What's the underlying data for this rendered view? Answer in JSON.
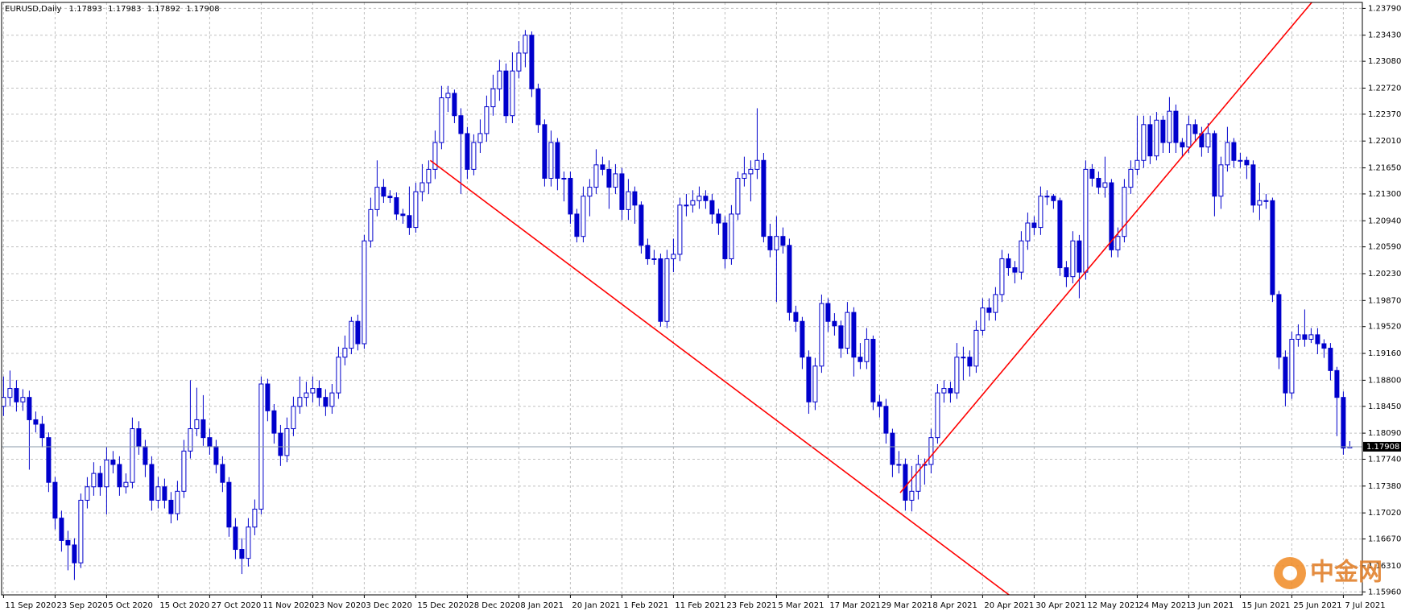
{
  "chart_data": {
    "type": "candlestick",
    "symbol": "EURUSD,Daily",
    "watermark": "中金网",
    "bull_color": "#ffffff",
    "bear_color": "#0000cc",
    "wick_color": "#0000cc",
    "grid": true,
    "price_line_color": "#8899aa",
    "ylim": [
      1.1592,
      1.2387
    ],
    "yticks": [
      {
        "value": 1.2379,
        "label": "1.23790"
      },
      {
        "value": 1.2343,
        "label": "1.23430"
      },
      {
        "value": 1.2308,
        "label": "1.23080"
      },
      {
        "value": 1.2272,
        "label": "1.22720"
      },
      {
        "value": 1.2237,
        "label": "1.22370"
      },
      {
        "value": 1.2201,
        "label": "1.22010"
      },
      {
        "value": 1.2165,
        "label": "1.21650"
      },
      {
        "value": 1.213,
        "label": "1.21300"
      },
      {
        "value": 1.2094,
        "label": "1.20940"
      },
      {
        "value": 1.2059,
        "label": "1.20590"
      },
      {
        "value": 1.2023,
        "label": "1.20230"
      },
      {
        "value": 1.1987,
        "label": "1.19870"
      },
      {
        "value": 1.1952,
        "label": "1.19520"
      },
      {
        "value": 1.1916,
        "label": "1.19160"
      },
      {
        "value": 1.188,
        "label": "1.18800"
      },
      {
        "value": 1.1845,
        "label": "1.18450"
      },
      {
        "value": 1.1809,
        "label": "1.18090"
      },
      {
        "value": 1.1774,
        "label": "1.17740"
      },
      {
        "value": 1.1738,
        "label": "1.17380"
      },
      {
        "value": 1.1702,
        "label": "1.17020"
      },
      {
        "value": 1.1667,
        "label": "1.16670"
      },
      {
        "value": 1.1631,
        "label": "1.16310"
      },
      {
        "value": 1.1596,
        "label": "1.15960"
      }
    ],
    "categories": [
      "11 Sep 2020",
      null,
      null,
      null,
      null,
      null,
      null,
      null,
      "23 Sep 2020",
      null,
      null,
      null,
      null,
      null,
      null,
      null,
      "5 Oct 2020",
      null,
      null,
      null,
      null,
      null,
      null,
      null,
      "15 Oct 2020",
      null,
      null,
      null,
      null,
      null,
      null,
      null,
      "27 Oct 2020",
      null,
      null,
      null,
      null,
      null,
      null,
      null,
      "11 Nov 2020",
      null,
      null,
      null,
      null,
      null,
      null,
      null,
      "23 Nov 2020",
      null,
      null,
      null,
      null,
      null,
      null,
      null,
      "3 Dec 2020",
      null,
      null,
      null,
      null,
      null,
      null,
      null,
      "15 Dec 2020",
      null,
      null,
      null,
      null,
      null,
      null,
      null,
      "28 Dec 2020",
      null,
      null,
      null,
      null,
      null,
      null,
      null,
      "8 Jan 2021",
      null,
      null,
      null,
      null,
      null,
      null,
      null,
      "20 Jan 2021",
      null,
      null,
      null,
      null,
      null,
      null,
      null,
      "1 Feb 2021",
      null,
      null,
      null,
      null,
      null,
      null,
      null,
      "11 Feb 2021",
      null,
      null,
      null,
      null,
      null,
      null,
      null,
      "23 Feb 2021",
      null,
      null,
      null,
      null,
      null,
      null,
      null,
      "5 Mar 2021",
      null,
      null,
      null,
      null,
      null,
      null,
      null,
      "17 Mar 2021",
      null,
      null,
      null,
      null,
      null,
      null,
      null,
      "29 Mar 2021",
      null,
      null,
      null,
      null,
      null,
      null,
      null,
      "8 Apr 2021",
      null,
      null,
      null,
      null,
      null,
      null,
      null,
      "20 Apr 2021",
      null,
      null,
      null,
      null,
      null,
      null,
      null,
      "30 Apr 2021",
      null,
      null,
      null,
      null,
      null,
      null,
      null,
      "12 May 2021",
      null,
      null,
      null,
      null,
      null,
      null,
      null,
      "24 May 2021",
      null,
      null,
      null,
      null,
      null,
      null,
      null,
      "3 Jun 2021",
      null,
      null,
      null,
      null,
      null,
      null,
      null,
      "15 Jun 2021",
      null,
      null,
      null,
      null,
      null,
      null,
      null,
      "25 Jun 2021",
      null,
      null,
      null,
      null,
      null,
      null,
      null,
      "7 Jul 2021",
      null
    ],
    "open": [
      1.1845,
      1.1857,
      1.1869,
      1.1851,
      1.1857,
      1.1827,
      1.1821,
      1.1803,
      1.1743,
      1.1695,
      1.1665,
      1.1659,
      1.1635,
      1.1719,
      1.1737,
      1.1755,
      1.1737,
      1.1773,
      1.1767,
      1.1737,
      1.1743,
      1.1815,
      1.1791,
      1.1767,
      1.1719,
      1.1737,
      1.1719,
      1.1701,
      1.1731,
      1.1785,
      1.1815,
      1.1827,
      1.1803,
      1.1791,
      1.1767,
      1.1743,
      1.1683,
      1.1653,
      1.1641,
      1.1683,
      1.1707,
      1.1875,
      1.1839,
      1.1809,
      1.1779,
      1.1815,
      1.1845,
      1.1857,
      1.1863,
      1.1869,
      1.1857,
      1.1845,
      1.1863,
      1.1911,
      1.1923,
      1.1959,
      1.1929,
      1.2067,
      1.2109,
      1.2139,
      1.2127,
      1.2125,
      1.2103,
      1.2101,
      1.2085,
      1.2133,
      1.2145,
      1.2163,
      1.2199,
      1.2259,
      1.2265,
      1.2235,
      1.2211,
      1.2163,
      1.2199,
      1.2211,
      1.2247,
      1.2271,
      1.2295,
      1.2235,
      1.2295,
      1.2319,
      1.2343,
      1.2271,
      1.2223,
      1.2151,
      1.2199,
      1.2151,
      1.2151,
      1.2103,
      1.2073,
      1.2127,
      1.2139,
      1.2169,
      1.2163,
      1.2139,
      1.2157,
      1.2109,
      1.2133,
      1.2115,
      1.2061,
      1.2043,
      1.2043,
      1.1959,
      1.2043,
      1.2049,
      1.2115,
      1.2115,
      1.2121,
      1.2127,
      1.2121,
      1.2103,
      1.2091,
      1.2043,
      1.2103,
      1.2151,
      1.2157,
      1.2163,
      1.2175,
      1.2073,
      1.2055,
      1.2073,
      1.2061,
      1.1971,
      1.1959,
      1.1911,
      1.1851,
      1.1899,
      1.1983,
      1.1959,
      1.1953,
      1.1923,
      1.1971,
      1.1911,
      1.1905,
      1.1935,
      1.1851,
      1.1845,
      1.1809,
      1.1767,
      1.1767,
      1.1719,
      1.1731,
      1.1767,
      1.1767,
      1.1803,
      1.1863,
      1.1869,
      1.1863,
      1.1911,
      1.1911,
      1.1899,
      1.1947,
      1.1977,
      1.1971,
      1.1995,
      1.2043,
      1.2031,
      1.2025,
      1.2067,
      1.2091,
      1.2085,
      1.2127,
      1.2127,
      1.2121,
      1.2031,
      1.2019,
      1.2067,
      1.2025,
      1.2163,
      1.2151,
      1.2139,
      1.2145,
      1.2055,
      1.2073,
      1.2139,
      1.2163,
      1.2175,
      1.2223,
      1.2181,
      1.2229,
      1.2199,
      1.2241,
      1.2199,
      1.2193,
      1.2223,
      1.2211,
      1.2193,
      1.2211,
      1.2127,
      1.2169,
      1.2199,
      1.2175,
      1.2175,
      1.2169,
      1.2115,
      1.2121,
      1.2121,
      1.1995,
      1.1911,
      1.1863,
      1.1935,
      1.1941,
      1.1935,
      1.1941,
      1.1929,
      1.1923,
      1.1893,
      1.1857,
      1.17893
    ],
    "high": [
      1.1885,
      1.1893,
      1.188,
      1.1868,
      1.1866,
      1.1838,
      1.1832,
      1.181,
      1.175,
      1.1705,
      1.1678,
      1.1668,
      1.1728,
      1.175,
      1.177,
      1.1765,
      1.179,
      1.1785,
      1.1778,
      1.1755,
      1.183,
      1.1825,
      1.18,
      1.1778,
      1.175,
      1.1748,
      1.173,
      1.1745,
      1.18,
      1.188,
      1.187,
      1.186,
      1.1815,
      1.18,
      1.1778,
      1.175,
      1.1695,
      1.1668,
      1.1695,
      1.172,
      1.1885,
      1.1882,
      1.1848,
      1.182,
      1.183,
      1.1858,
      1.1885,
      1.1878,
      1.1885,
      1.188,
      1.1868,
      1.1875,
      1.1925,
      1.194,
      1.1965,
      1.1968,
      1.2075,
      1.2125,
      1.2175,
      1.215,
      1.2135,
      1.2132,
      1.211,
      1.214,
      1.2145,
      1.217,
      1.2175,
      1.2215,
      1.2275,
      1.2275,
      1.227,
      1.2245,
      1.222,
      1.221,
      1.223,
      1.2262,
      1.229,
      1.231,
      1.2305,
      1.232,
      1.2335,
      1.235,
      1.2348,
      1.2278,
      1.223,
      1.2215,
      1.2205,
      1.216,
      1.216,
      1.211,
      1.214,
      1.215,
      1.219,
      1.218,
      1.2175,
      1.217,
      1.2165,
      1.215,
      1.214,
      1.212,
      1.207,
      1.2055,
      1.205,
      1.2055,
      1.207,
      1.2125,
      1.213,
      1.2135,
      1.214,
      1.2135,
      1.213,
      1.211,
      1.21,
      1.2115,
      1.216,
      1.218,
      1.2175,
      1.2245,
      1.2185,
      1.209,
      1.21,
      1.2085,
      1.207,
      1.198,
      1.1965,
      1.192,
      1.191,
      1.1995,
      1.199,
      1.197,
      1.196,
      1.1985,
      1.1978,
      1.193,
      1.195,
      1.194,
      1.186,
      1.1855,
      1.1815,
      1.1785,
      1.1775,
      1.1765,
      1.178,
      1.1775,
      1.1815,
      1.1875,
      1.188,
      1.1878,
      1.193,
      1.1925,
      1.192,
      1.196,
      1.199,
      1.199,
      1.2005,
      1.2055,
      1.205,
      1.204,
      1.208,
      1.2105,
      1.21,
      1.214,
      1.2135,
      1.213,
      1.2125,
      1.204,
      1.208,
      1.2075,
      1.2175,
      1.217,
      1.216,
      1.218,
      1.215,
      1.2085,
      1.215,
      1.2175,
      1.2235,
      1.2235,
      1.2235,
      1.224,
      1.2235,
      1.226,
      1.225,
      1.2205,
      1.2235,
      1.223,
      1.222,
      1.2225,
      1.2215,
      1.218,
      1.222,
      1.2205,
      1.2185,
      1.218,
      1.2175,
      1.2145,
      1.213,
      1.2125,
      1.2,
      1.192,
      1.1945,
      1.1955,
      1.1975,
      1.195,
      1.195,
      1.1935,
      1.193,
      1.1898,
      1.1865,
      1.17983
    ],
    "low": [
      1.1832,
      1.1845,
      1.1838,
      1.1839,
      1.176,
      1.181,
      1.179,
      1.173,
      1.168,
      1.165,
      1.1625,
      1.1612,
      1.1628,
      1.1708,
      1.1725,
      1.1725,
      1.17,
      1.1755,
      1.1725,
      1.1728,
      1.1735,
      1.178,
      1.175,
      1.1705,
      1.1708,
      1.1708,
      1.1688,
      1.1692,
      1.1722,
      1.1775,
      1.1805,
      1.1792,
      1.178,
      1.1755,
      1.173,
      1.167,
      1.164,
      1.162,
      1.163,
      1.1672,
      1.17,
      1.1825,
      1.1795,
      1.1765,
      1.177,
      1.1805,
      1.1835,
      1.1845,
      1.185,
      1.1845,
      1.1832,
      1.1835,
      1.1855,
      1.19,
      1.1915,
      1.192,
      1.1922,
      1.2058,
      1.21,
      1.2118,
      1.2118,
      1.2095,
      1.209,
      1.2075,
      1.2078,
      1.212,
      1.213,
      1.215,
      1.219,
      1.224,
      1.2225,
      1.213,
      1.215,
      1.2155,
      1.2185,
      1.22,
      1.2235,
      1.2255,
      1.2225,
      1.2225,
      1.2285,
      1.23,
      1.226,
      1.2212,
      1.214,
      1.214,
      1.2135,
      1.212,
      1.209,
      1.2065,
      1.2065,
      1.21,
      1.213,
      1.2155,
      1.211,
      1.213,
      1.2095,
      1.2095,
      1.209,
      1.205,
      1.2035,
      1.2035,
      1.1952,
      1.195,
      1.2025,
      1.204,
      1.21,
      1.2105,
      1.211,
      1.211,
      1.209,
      1.2075,
      1.203,
      1.2035,
      1.2095,
      1.214,
      1.212,
      1.215,
      1.2065,
      1.2045,
      1.1985,
      1.205,
      1.196,
      1.1945,
      1.1895,
      1.1835,
      1.184,
      1.189,
      1.1945,
      1.194,
      1.191,
      1.1915,
      1.1885,
      1.1895,
      1.1895,
      1.184,
      1.183,
      1.1795,
      1.175,
      1.1755,
      1.1705,
      1.1704,
      1.172,
      1.174,
      1.1755,
      1.1795,
      1.185,
      1.185,
      1.1855,
      1.188,
      1.1885,
      1.189,
      1.194,
      1.196,
      1.196,
      1.1985,
      1.202,
      1.201,
      1.2015,
      1.2055,
      1.2075,
      1.2075,
      1.2115,
      1.211,
      1.202,
      1.2005,
      1.201,
      1.199,
      1.2015,
      1.214,
      1.213,
      1.2125,
      1.2045,
      1.2045,
      1.2065,
      1.213,
      1.2155,
      1.2165,
      1.217,
      1.2175,
      1.2185,
      1.2185,
      1.2185,
      1.218,
      1.2185,
      1.22,
      1.218,
      1.2185,
      1.21,
      1.211,
      1.216,
      1.2165,
      1.2165,
      1.215,
      1.2105,
      1.2095,
      1.211,
      1.1985,
      1.1895,
      1.1845,
      1.1855,
      1.1925,
      1.1925,
      1.193,
      1.1915,
      1.191,
      1.188,
      1.1805,
      1.178,
      1.17892
    ],
    "close": [
      1.1857,
      1.1869,
      1.1851,
      1.1857,
      1.1827,
      1.1821,
      1.1803,
      1.1743,
      1.1695,
      1.1665,
      1.1659,
      1.1635,
      1.1719,
      1.1737,
      1.1755,
      1.1737,
      1.1773,
      1.1767,
      1.1737,
      1.1743,
      1.1815,
      1.1791,
      1.1767,
      1.1719,
      1.1737,
      1.1719,
      1.1701,
      1.1731,
      1.1785,
      1.1815,
      1.1827,
      1.1803,
      1.1791,
      1.1767,
      1.1743,
      1.1683,
      1.1653,
      1.1641,
      1.1683,
      1.1707,
      1.1875,
      1.1839,
      1.1809,
      1.1779,
      1.1815,
      1.1845,
      1.1857,
      1.1863,
      1.1869,
      1.1857,
      1.1845,
      1.1863,
      1.1911,
      1.1923,
      1.1959,
      1.1929,
      1.2067,
      1.2109,
      1.2139,
      1.2127,
      1.2125,
      1.2103,
      1.2101,
      1.2085,
      1.2133,
      1.2145,
      1.2163,
      1.2199,
      1.2259,
      1.2265,
      1.2235,
      1.2211,
      1.2163,
      1.2199,
      1.2211,
      1.2247,
      1.2271,
      1.2295,
      1.2235,
      1.2295,
      1.2319,
      1.2343,
      1.2271,
      1.2223,
      1.2151,
      1.2199,
      1.2151,
      1.2151,
      1.2103,
      1.2073,
      1.2127,
      1.2139,
      1.2169,
      1.2163,
      1.2139,
      1.2157,
      1.2109,
      1.2133,
      1.2115,
      1.2061,
      1.2043,
      1.2043,
      1.1959,
      1.2043,
      1.2049,
      1.2115,
      1.2115,
      1.2121,
      1.2127,
      1.2121,
      1.2103,
      1.2091,
      1.2043,
      1.2103,
      1.2151,
      1.2157,
      1.2163,
      1.2175,
      1.2073,
      1.2055,
      1.2073,
      1.2061,
      1.1971,
      1.1959,
      1.1911,
      1.1851,
      1.1899,
      1.1983,
      1.1959,
      1.1953,
      1.1923,
      1.1971,
      1.1911,
      1.1905,
      1.1935,
      1.1851,
      1.1845,
      1.1809,
      1.1767,
      1.1767,
      1.1719,
      1.1731,
      1.1767,
      1.1767,
      1.1803,
      1.1863,
      1.1869,
      1.1863,
      1.1911,
      1.1911,
      1.1899,
      1.1947,
      1.1977,
      1.1971,
      1.1995,
      1.2043,
      1.2031,
      1.2025,
      1.2067,
      1.2091,
      1.2085,
      1.2127,
      1.2127,
      1.2121,
      1.2031,
      1.2019,
      1.2067,
      1.2025,
      1.2163,
      1.2151,
      1.2139,
      1.2145,
      1.2055,
      1.2073,
      1.2139,
      1.2163,
      1.2175,
      1.2223,
      1.2181,
      1.2229,
      1.2199,
      1.2241,
      1.2199,
      1.2193,
      1.2223,
      1.2211,
      1.2193,
      1.2211,
      1.2127,
      1.2169,
      1.2199,
      1.2175,
      1.2175,
      1.2169,
      1.2115,
      1.2121,
      1.2121,
      1.1995,
      1.1911,
      1.1863,
      1.1935,
      1.1941,
      1.1935,
      1.1941,
      1.1929,
      1.1923,
      1.1893,
      1.1857,
      1.1789,
      1.17908
    ],
    "trendlines": [
      {
        "color": "#ff0000",
        "x": [
          66.25,
          156.1
        ],
        "y": [
          1.2175,
          1.1592
        ]
      },
      {
        "color": "#ff0000",
        "x": [
          139.2,
          203.1
        ],
        "y": [
          1.1729,
          1.2387
        ]
      }
    ]
  }
}
